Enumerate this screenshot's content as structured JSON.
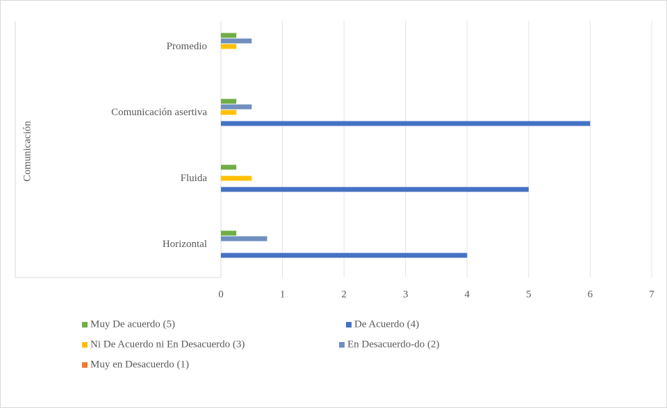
{
  "chart_data": {
    "type": "bar",
    "orientation": "horizontal",
    "group_label": "Comunicación",
    "categories": [
      "Horizontal",
      "Fluida",
      "Comunicación asertiva",
      "Promedio"
    ],
    "series": [
      {
        "name": "Muy De acuerdo (5)",
        "color": "#70ad47",
        "values": [
          0.25,
          0.25,
          0.25,
          0.25
        ]
      },
      {
        "name": "De Acuerdo (4)",
        "color": "#4472c4",
        "values": [
          4,
          5,
          6,
          0
        ]
      },
      {
        "name": "Ni De Acuerdo ni En Desacuerdo (3)",
        "color": "#ffc000",
        "values": [
          0,
          0.5,
          0.25,
          0.25
        ]
      },
      {
        "name": "En Desacuerdo-do (2)",
        "color": "#6f8fbf",
        "values": [
          0.75,
          0,
          0.5,
          0.5
        ]
      },
      {
        "name": "Muy en Desacuerdo (1)",
        "color": "#ed7d31",
        "values": [
          0,
          0,
          0,
          0
        ]
      }
    ],
    "xlim": [
      0,
      7
    ],
    "xticks": [
      0,
      1,
      2,
      3,
      4,
      5,
      6,
      7
    ],
    "grid": true
  }
}
